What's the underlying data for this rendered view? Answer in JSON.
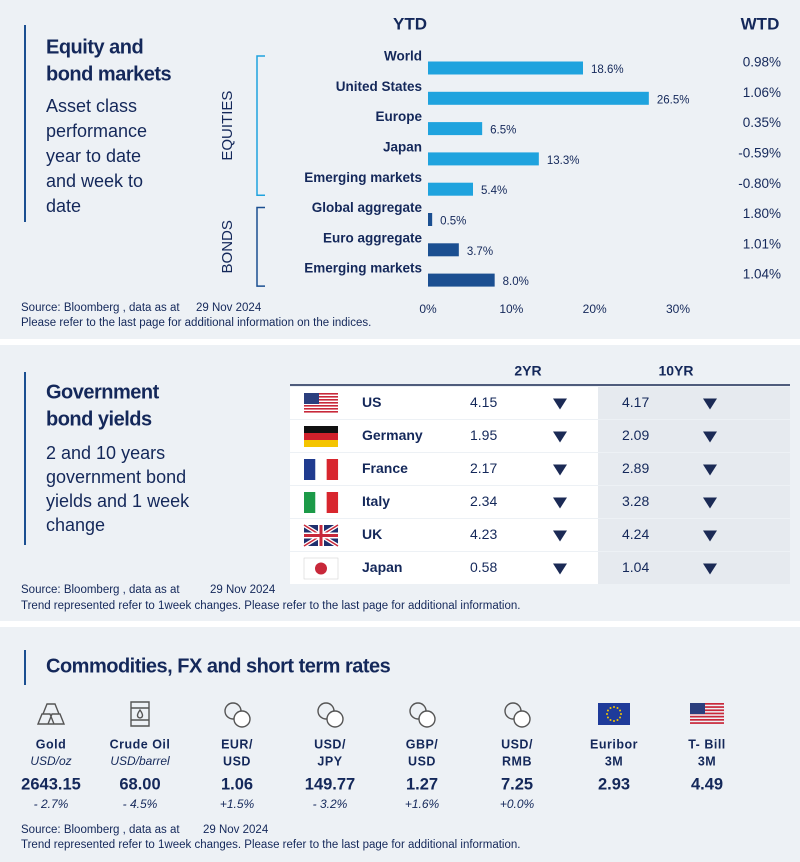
{
  "equity": {
    "title": [
      "Equity and",
      "bond markets"
    ],
    "subtitle": [
      "Asset class",
      "performance",
      "year to date",
      "and week to",
      "date"
    ],
    "ytd_header": "YTD",
    "wtd_header": "WTD",
    "source": [
      "Source: Bloomberg , data as at",
      "29 Nov 2024",
      "Please refer to the last page for additional information on the indices."
    ]
  },
  "chart_data": {
    "type": "bar",
    "orientation": "horizontal",
    "series": [
      {
        "name": "EQUITIES",
        "color": "#1fa3de",
        "categories": [
          "World",
          "United States",
          "Europe",
          "Japan",
          "Emerging  markets"
        ],
        "values": [
          18.6,
          26.5,
          6.5,
          13.3,
          5.4
        ],
        "value_labels": [
          "18.6%",
          "26.5%",
          "6.5%",
          "13.3%",
          "5.4%"
        ],
        "wtd": [
          "0.98%",
          "1.06%",
          "0.35%",
          "-0.59%",
          "-0.80%"
        ]
      },
      {
        "name": "BONDS",
        "color": "#1b4f91",
        "categories": [
          "Global aggregate",
          "Euro aggregate",
          "Emerging  markets"
        ],
        "values": [
          0.5,
          3.7,
          8.0
        ],
        "value_labels": [
          "0.5%",
          "3.7%",
          "8.0%"
        ],
        "wtd": [
          "1.80%",
          "1.01%",
          "1.04%"
        ]
      }
    ],
    "xlim": [
      0,
      30
    ],
    "xticks": [
      {
        "value": 0,
        "label": "0%"
      },
      {
        "value": 10,
        "label": "10%"
      },
      {
        "value": 20,
        "label": "20%"
      },
      {
        "value": 30,
        "label": "30%"
      }
    ],
    "positive_color": "#3aa890",
    "negative_color": "#c8284f"
  },
  "yields": {
    "title": [
      "Government",
      "bond yields"
    ],
    "subtitle": [
      "2 and 10 years",
      "government bond",
      "yields and 1 week",
      "change"
    ],
    "headers": [
      "2YR",
      "10YR"
    ],
    "rows": [
      {
        "country": "US",
        "y2": 4.15,
        "y10": 4.17,
        "trend": [
          "down",
          "down"
        ]
      },
      {
        "country": "Germany",
        "y2": 1.95,
        "y10": 2.09,
        "trend": [
          "down",
          "down"
        ]
      },
      {
        "country": "France",
        "y2": 2.17,
        "y10": 2.89,
        "trend": [
          "down",
          "down"
        ]
      },
      {
        "country": "Italy",
        "y2": 2.34,
        "y10": 3.28,
        "trend": [
          "down",
          "down"
        ]
      },
      {
        "country": "UK",
        "y2": 4.23,
        "y10": 4.24,
        "trend": [
          "down",
          "down"
        ]
      },
      {
        "country": "Japan",
        "y2": 0.58,
        "y10": 1.04,
        "trend": [
          "down",
          "down"
        ]
      }
    ],
    "source": [
      "Source: Bloomberg , data as at",
      "29 Nov 2024",
      "Trend represented refer to 1week changes. Please refer to the last page for additional information."
    ]
  },
  "commodities": {
    "title": "Commodities, FX and short term rates",
    "items": [
      {
        "name": [
          "Gold"
        ],
        "unit": "USD/oz",
        "value": "2643.15",
        "change": "- 2.7%"
      },
      {
        "name": [
          "Crude Oil"
        ],
        "unit": "USD/barrel",
        "value": "68.00",
        "change": "- 4.5%"
      },
      {
        "name": [
          "EUR/",
          "USD"
        ],
        "value": "1.06",
        "change": "+1.5%"
      },
      {
        "name": [
          "USD/",
          "JPY"
        ],
        "value": "149.77",
        "change": "- 3.2%"
      },
      {
        "name": [
          "GBP/",
          "USD"
        ],
        "value": "1.27",
        "change": "+1.6%"
      },
      {
        "name": [
          "USD/",
          "RMB"
        ],
        "value": "7.25",
        "change": "+0.0%"
      },
      {
        "name": [
          "Euribor",
          "3M"
        ],
        "value": "2.93"
      },
      {
        "name": [
          "T- Bill",
          "3M"
        ],
        "value": "4.49"
      }
    ],
    "source": [
      "Source: Bloomberg , data as at",
      "29 Nov 2024",
      "Trend represented refer to 1week changes. Please refer to the last page for additional information."
    ]
  }
}
